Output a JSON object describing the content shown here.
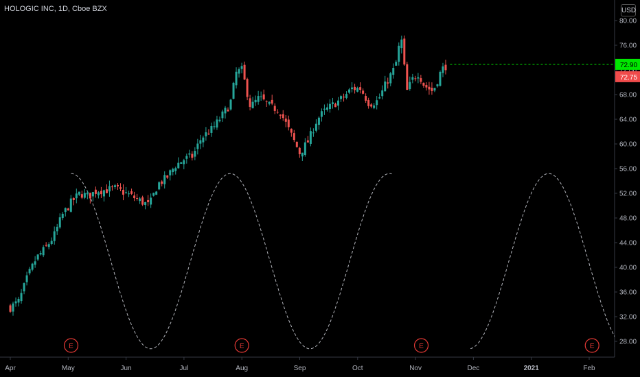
{
  "header": {
    "title": "HOLOGIC INC, 1D, Cboe BZX",
    "currency": "USD"
  },
  "price_labels": {
    "last": "72.90",
    "prev": "72.75"
  },
  "earnings_marker": "E",
  "colors": {
    "up": "#26a69a",
    "down": "#ef5350",
    "last_price": "#00e600",
    "prev_price": "#f04b4b",
    "grid_axis": "#363a45",
    "cycle": "#d1d4dc"
  },
  "chart_data": {
    "type": "candlestick",
    "title": "HOLOGIC INC, 1D, Cboe BZX",
    "ylim": [
      28,
      80
    ],
    "y_ticks": [
      "80.00",
      "76.00",
      "72.00",
      "68.00",
      "64.00",
      "60.00",
      "56.00",
      "52.00",
      "48.00",
      "44.00",
      "40.00",
      "36.00",
      "32.00",
      "28.00"
    ],
    "x_ticks": [
      {
        "label": "Apr",
        "month": 3
      },
      {
        "label": "May",
        "month": 4
      },
      {
        "label": "Jun",
        "month": 5
      },
      {
        "label": "Jul",
        "month": 6
      },
      {
        "label": "Aug",
        "month": 7
      },
      {
        "label": "Sep",
        "month": 8
      },
      {
        "label": "Oct",
        "month": 9
      },
      {
        "label": "Nov",
        "month": 10
      },
      {
        "label": "Dec",
        "month": 11
      },
      {
        "label": "2021",
        "month": 12
      },
      {
        "label": "Feb",
        "month": 13
      }
    ],
    "earnings_months": [
      4.05,
      7.0,
      10.1,
      13.05
    ],
    "last_price": 72.9,
    "close_path": [
      [
        3.0,
        33.5
      ],
      [
        3.15,
        34.5
      ],
      [
        3.3,
        38.5
      ],
      [
        3.45,
        41.5
      ],
      [
        3.6,
        43.0
      ],
      [
        3.75,
        45.0
      ],
      [
        3.9,
        48.5
      ],
      [
        4.05,
        50.5
      ],
      [
        4.2,
        52.0
      ],
      [
        4.35,
        51.5
      ],
      [
        4.5,
        52.5
      ],
      [
        4.65,
        52.5
      ],
      [
        4.8,
        52.8
      ],
      [
        5.0,
        52.0
      ],
      [
        5.2,
        51.0
      ],
      [
        5.4,
        50.0
      ],
      [
        5.55,
        53.5
      ],
      [
        5.7,
        54.5
      ],
      [
        5.85,
        56.5
      ],
      [
        6.0,
        57.5
      ],
      [
        6.15,
        58.0
      ],
      [
        6.3,
        61.0
      ],
      [
        6.5,
        62.5
      ],
      [
        6.65,
        64.5
      ],
      [
        6.8,
        66.5
      ],
      [
        6.9,
        71.5
      ],
      [
        7.0,
        72.0
      ],
      [
        7.15,
        66.0
      ],
      [
        7.3,
        67.5
      ],
      [
        7.5,
        66.0
      ],
      [
        7.65,
        65.5
      ],
      [
        7.85,
        61.5
      ],
      [
        8.0,
        58.5
      ],
      [
        8.15,
        60.5
      ],
      [
        8.3,
        64.0
      ],
      [
        8.45,
        65.5
      ],
      [
        8.6,
        66.5
      ],
      [
        8.75,
        67.5
      ],
      [
        8.9,
        69.0
      ],
      [
        9.05,
        69.0
      ],
      [
        9.2,
        66.5
      ],
      [
        9.35,
        67.0
      ],
      [
        9.5,
        70.0
      ],
      [
        9.65,
        72.5
      ],
      [
        9.75,
        77.5
      ],
      [
        9.85,
        68.5
      ],
      [
        9.95,
        70.5
      ],
      [
        10.05,
        71.5
      ],
      [
        10.15,
        69.5
      ],
      [
        10.3,
        68.5
      ],
      [
        10.45,
        72.0
      ],
      [
        10.55,
        72.9
      ]
    ],
    "cycle": {
      "type": "dashed-sine",
      "peak_value": 55.2,
      "trough_value": 26.8,
      "peak_months": [
        4.05,
        6.8,
        9.6,
        12.4
      ]
    }
  }
}
